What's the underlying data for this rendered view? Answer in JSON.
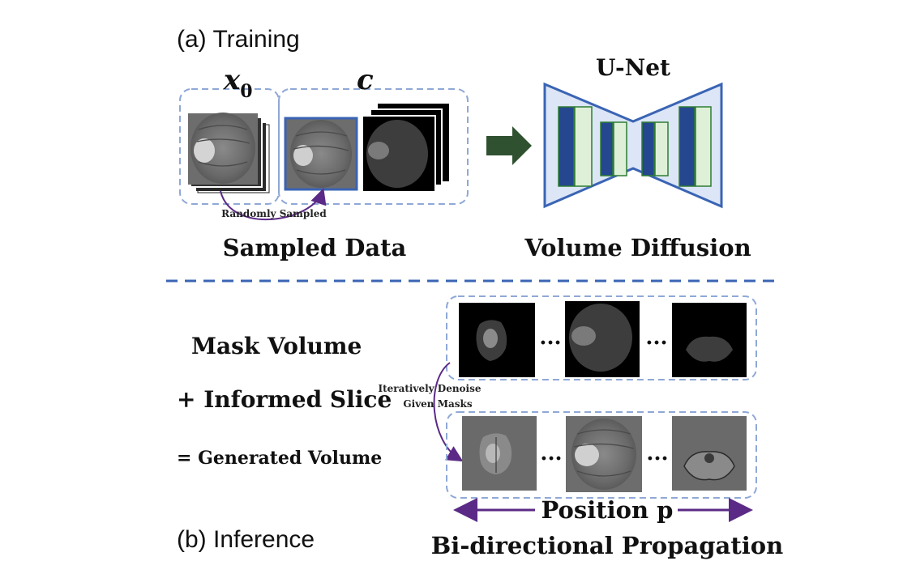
{
  "training": {
    "section_label": "(a) Training",
    "x0_label": "x",
    "x0_subscript": "0",
    "c_label": "c",
    "randomly_sampled": "Randomly Sampled",
    "sampled_data": "Sampled Data",
    "unet_label": "U-Net",
    "volume_diffusion": "Volume Diffusion"
  },
  "inference": {
    "section_label": "(b) Inference",
    "mask_volume": "Mask Volume",
    "informed_slice": "+ Informed Slice",
    "generated_volume": "= Generated Volume",
    "iteratively_denoise_line1": "Iteratively Denoise",
    "iteratively_denoise_line2": "Given Masks",
    "ellipsis": "...",
    "position_label": "Position p",
    "bidirectional": "Bi-directional Propagation"
  },
  "colors": {
    "dashed_box": "#8fa8d6",
    "divider": "#3a64b4",
    "unet_fill": "#dce6f6",
    "unet_stroke": "#3a64b4",
    "unet_dark_block": "#24478f",
    "unet_light_block": "#dff0d8",
    "unet_block_stroke": "#2e7d32",
    "arrow_green": "#2f5130",
    "purple": "#5b2a86"
  }
}
